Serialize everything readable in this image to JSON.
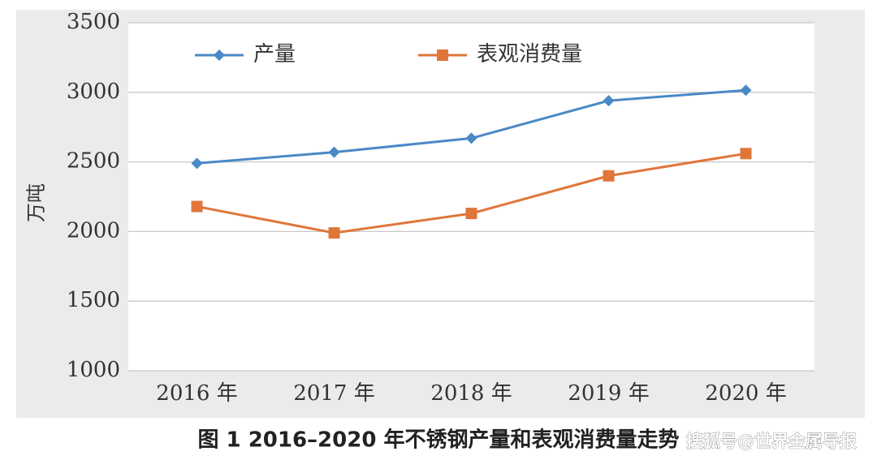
{
  "chart_data": {
    "type": "line",
    "categories": [
      "2016 年",
      "2017 年",
      "2018 年",
      "2019 年",
      "2020 年"
    ],
    "series": [
      {
        "name": "产量",
        "color": "#4a89c5",
        "marker": "diamond",
        "values": [
          2490,
          2570,
          2670,
          2940,
          3015
        ]
      },
      {
        "name": "表观消费量",
        "color": "#e0763a",
        "marker": "square",
        "values": [
          2180,
          1990,
          2130,
          2400,
          2560
        ]
      }
    ],
    "y_label": "万吨",
    "ylim": [
      1000,
      3500
    ],
    "yticks": [
      1000,
      1500,
      2000,
      2500,
      3000,
      3500
    ],
    "grid": true,
    "legend": "top",
    "caption": "图 1  2016–2020 年不锈钢产量和表观消费量走势",
    "watermark": "搜狐号@世界金属导报"
  }
}
